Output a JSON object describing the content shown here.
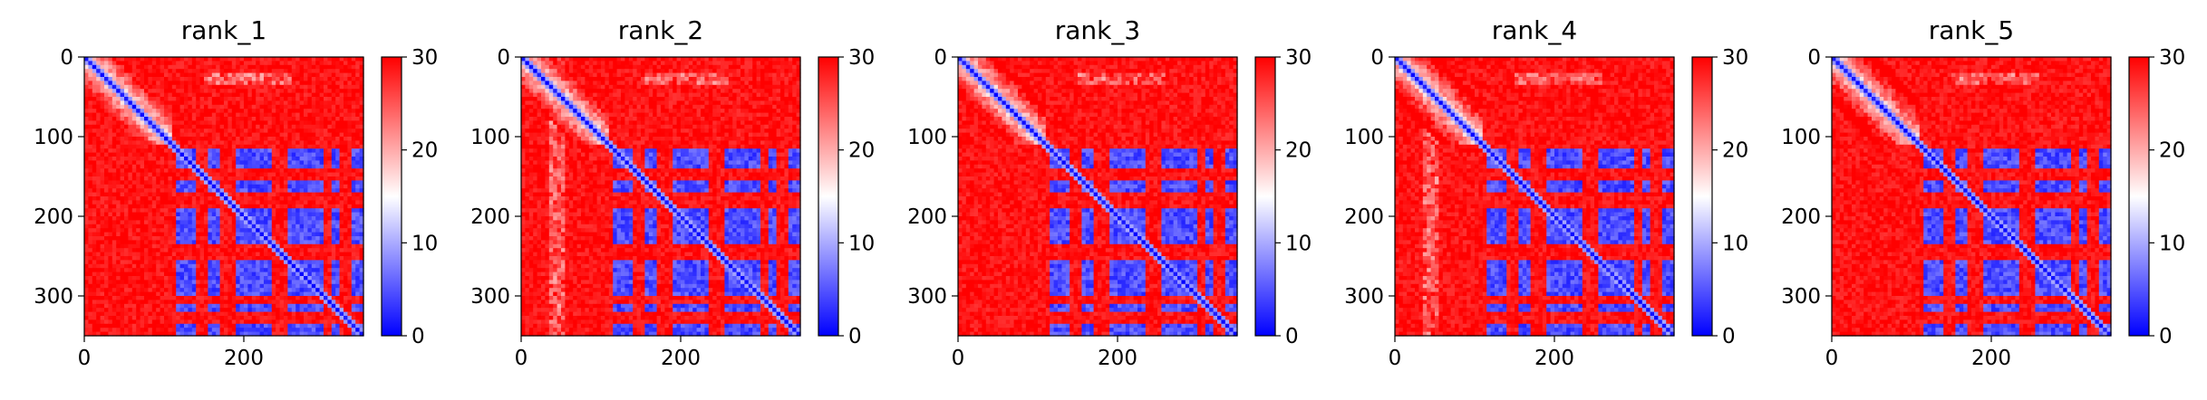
{
  "figure": {
    "colormap": "bwr",
    "colors": {
      "low": "#0000ff",
      "mid": "#ffffff",
      "high": "#ff0000",
      "axis": "#000000"
    }
  },
  "chart_data": [
    {
      "type": "heatmap",
      "title": "rank_1",
      "xlabel": "",
      "ylabel": "",
      "xlim": [
        0,
        350
      ],
      "ylim": [
        350,
        0
      ],
      "x_ticks": [
        "0",
        "200"
      ],
      "y_ticks": [
        "0",
        "100",
        "200",
        "300"
      ],
      "colorbar": {
        "range": [
          0,
          30
        ],
        "ticks": [
          "0",
          "10",
          "20",
          "30"
        ]
      },
      "grid": false,
      "description": "predicted aligned error matrix; diagonal near 0, structured low-error block from ~115 to ~350"
    },
    {
      "type": "heatmap",
      "title": "rank_2",
      "xlabel": "",
      "ylabel": "",
      "xlim": [
        0,
        350
      ],
      "ylim": [
        350,
        0
      ],
      "x_ticks": [
        "0",
        "200"
      ],
      "y_ticks": [
        "0",
        "100",
        "200",
        "300"
      ],
      "colorbar": {
        "range": [
          0,
          30
        ],
        "ticks": [
          "0",
          "10",
          "20",
          "30"
        ]
      },
      "grid": false
    },
    {
      "type": "heatmap",
      "title": "rank_3",
      "xlabel": "",
      "ylabel": "",
      "xlim": [
        0,
        350
      ],
      "ylim": [
        350,
        0
      ],
      "x_ticks": [
        "0",
        "200"
      ],
      "y_ticks": [
        "0",
        "100",
        "200",
        "300"
      ],
      "colorbar": {
        "range": [
          0,
          30
        ],
        "ticks": [
          "0",
          "10",
          "20",
          "30"
        ]
      },
      "grid": false
    },
    {
      "type": "heatmap",
      "title": "rank_4",
      "xlabel": "",
      "ylabel": "",
      "xlim": [
        0,
        350
      ],
      "ylim": [
        350,
        0
      ],
      "x_ticks": [
        "0",
        "200"
      ],
      "y_ticks": [
        "0",
        "100",
        "200",
        "300"
      ],
      "colorbar": {
        "range": [
          0,
          30
        ],
        "ticks": [
          "0",
          "10",
          "20",
          "30"
        ]
      },
      "grid": false
    },
    {
      "type": "heatmap",
      "title": "rank_5",
      "xlabel": "",
      "ylabel": "",
      "xlim": [
        0,
        350
      ],
      "ylim": [
        350,
        0
      ],
      "x_ticks": [
        "0",
        "200"
      ],
      "y_ticks": [
        "0",
        "100",
        "200",
        "300"
      ],
      "colorbar": {
        "range": [
          0,
          30
        ],
        "ticks": [
          "0",
          "10",
          "20",
          "30"
        ]
      },
      "grid": false
    }
  ]
}
